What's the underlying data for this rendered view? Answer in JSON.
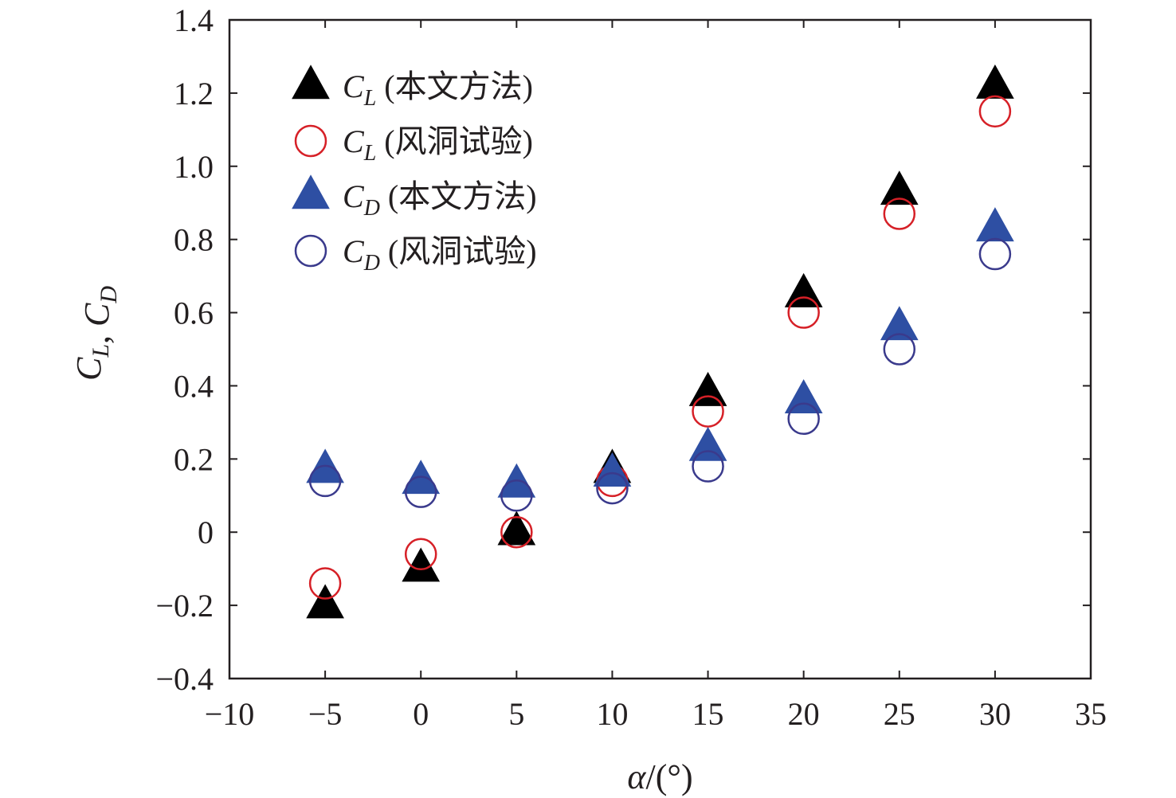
{
  "chart_data": {
    "type": "scatter",
    "xlabel": {
      "symbol": "α",
      "unit": "/(°)"
    },
    "ylabel": {
      "parts": [
        {
          "symbol": "C",
          "sub": "L"
        },
        {
          "sep": ", "
        },
        {
          "symbol": "C",
          "sub": "D"
        }
      ]
    },
    "xlim": [
      -10,
      35
    ],
    "ylim": [
      -0.4,
      1.4
    ],
    "x_ticks": [
      -10,
      -5,
      0,
      5,
      10,
      15,
      20,
      25,
      30,
      35
    ],
    "x_tick_labels": [
      "−10",
      "−5",
      "0",
      "5",
      "10",
      "15",
      "20",
      "25",
      "30",
      "35"
    ],
    "y_ticks": [
      -0.4,
      -0.2,
      0,
      0.2,
      0.4,
      0.6,
      0.8,
      1.0,
      1.2,
      1.4
    ],
    "y_tick_labels": [
      "−0.4",
      "−0.2",
      "0",
      "0.2",
      "0.4",
      "0.6",
      "0.8",
      "1.0",
      "1.2",
      "1.4"
    ],
    "grid": false,
    "legend_position": "top-left",
    "series": [
      {
        "name": "C_L (本文方法)",
        "legend": {
          "symbol": "C",
          "sub": "L",
          "text": " (本文方法)"
        },
        "marker": "triangle-filled",
        "color": "#000000",
        "x": [
          -5,
          0,
          5,
          10,
          15,
          20,
          25,
          30
        ],
        "y": [
          -0.2,
          -0.1,
          0.0,
          0.17,
          0.38,
          0.65,
          0.93,
          1.22
        ]
      },
      {
        "name": "C_L (风洞试验)",
        "legend": {
          "symbol": "C",
          "sub": "L",
          "text": " (风洞试验)"
        },
        "marker": "circle-open",
        "color": "#d62027",
        "x": [
          -5,
          0,
          5,
          10,
          15,
          20,
          25,
          30
        ],
        "y": [
          -0.14,
          -0.06,
          0.0,
          0.14,
          0.33,
          0.6,
          0.87,
          1.15
        ]
      },
      {
        "name": "C_D (本文方法)",
        "legend": {
          "symbol": "C",
          "sub": "D",
          "text": " (本文方法)"
        },
        "marker": "triangle-filled",
        "color": "#2e4fa3",
        "x": [
          -5,
          0,
          5,
          10,
          15,
          20,
          25,
          30
        ],
        "y": [
          0.17,
          0.14,
          0.13,
          0.16,
          0.23,
          0.36,
          0.56,
          0.83
        ]
      },
      {
        "name": "C_D (风洞试验)",
        "legend": {
          "symbol": "C",
          "sub": "D",
          "text": " (风洞试验)"
        },
        "marker": "circle-open",
        "color": "#3a3a8c",
        "x": [
          -5,
          0,
          5,
          10,
          15,
          20,
          25,
          30
        ],
        "y": [
          0.14,
          0.11,
          0.1,
          0.12,
          0.18,
          0.31,
          0.5,
          0.76
        ]
      }
    ]
  }
}
